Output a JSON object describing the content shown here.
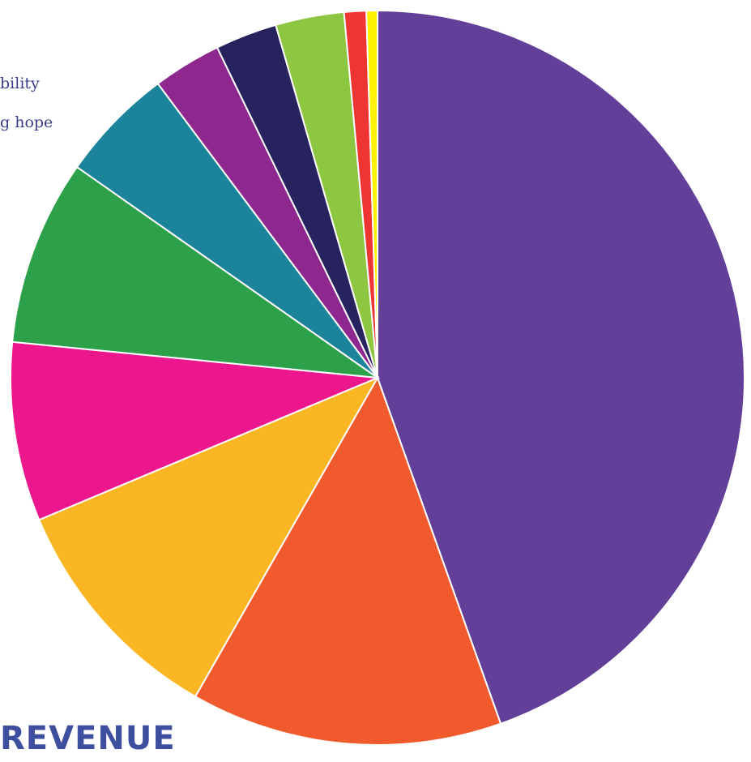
{
  "chart_data": {
    "type": "pie",
    "title": "REVENUE",
    "start_angle_deg": 0,
    "direction": "clockwise",
    "slices": [
      {
        "value": 45.8,
        "color": "#623f99"
      },
      {
        "value": 14.1,
        "color": "#f15a2c"
      },
      {
        "value": 10.7,
        "color": "#fbb723"
      },
      {
        "value": 8.1,
        "color": "#ec168d"
      },
      {
        "value": 8.4,
        "color": "#2da04a"
      },
      {
        "value": 5.2,
        "color": "#1c849a"
      },
      {
        "value": 3.1,
        "color": "#8e288e"
      },
      {
        "value": 2.8,
        "color": "#27235e"
      },
      {
        "value": 3.1,
        "color": "#8dc640"
      },
      {
        "value": 1.0,
        "color": "#ee3533"
      },
      {
        "value": 0.5,
        "color": "#fff200"
      }
    ]
  },
  "text_fragments": [
    "bility",
    "g hope"
  ]
}
